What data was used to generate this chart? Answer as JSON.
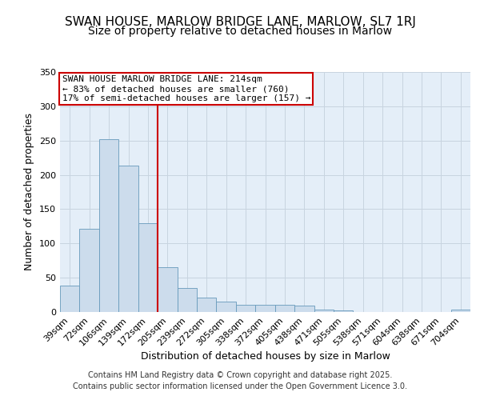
{
  "title1": "SWAN HOUSE, MARLOW BRIDGE LANE, MARLOW, SL7 1RJ",
  "title2": "Size of property relative to detached houses in Marlow",
  "xlabel": "Distribution of detached houses by size in Marlow",
  "ylabel": "Number of detached properties",
  "bar_labels": [
    "39sqm",
    "72sqm",
    "106sqm",
    "139sqm",
    "172sqm",
    "205sqm",
    "239sqm",
    "272sqm",
    "305sqm",
    "338sqm",
    "372sqm",
    "405sqm",
    "438sqm",
    "471sqm",
    "505sqm",
    "538sqm",
    "571sqm",
    "604sqm",
    "638sqm",
    "671sqm",
    "704sqm"
  ],
  "bar_heights": [
    39,
    121,
    252,
    213,
    130,
    65,
    35,
    21,
    15,
    11,
    11,
    10,
    9,
    4,
    2,
    0,
    0,
    0,
    0,
    0,
    3
  ],
  "bar_color": "#ccdcec",
  "bar_edge_color": "#6699bb",
  "grid_color": "#c8d4e0",
  "background_color": "#e4eef8",
  "vline_color": "#cc0000",
  "annotation_text": "SWAN HOUSE MARLOW BRIDGE LANE: 214sqm\n← 83% of detached houses are smaller (760)\n17% of semi-detached houses are larger (157) →",
  "annotation_box_edgecolor": "#cc0000",
  "ylim": [
    0,
    350
  ],
  "yticks": [
    0,
    50,
    100,
    150,
    200,
    250,
    300,
    350
  ],
  "footer1": "Contains HM Land Registry data © Crown copyright and database right 2025.",
  "footer2": "Contains public sector information licensed under the Open Government Licence 3.0.",
  "title_fontsize": 11,
  "subtitle_fontsize": 10,
  "axis_label_fontsize": 9,
  "tick_fontsize": 8,
  "annotation_fontsize": 8,
  "footer_fontsize": 7
}
